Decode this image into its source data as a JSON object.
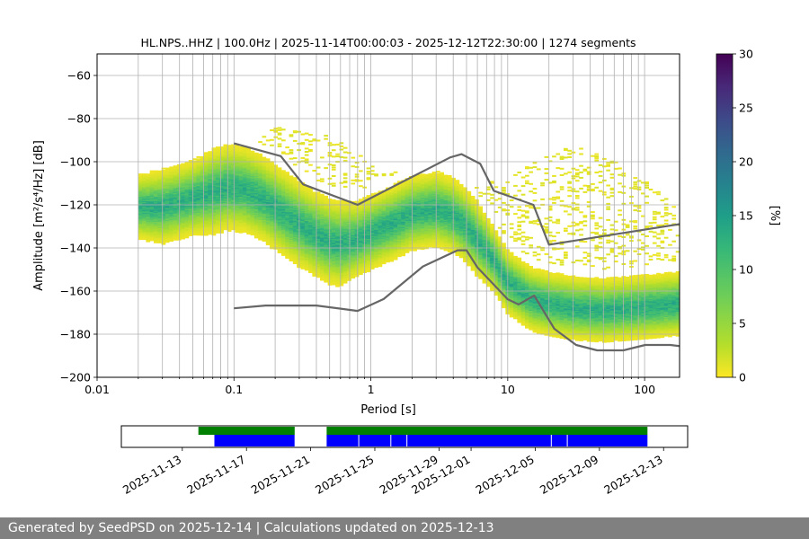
{
  "chart_data": [
    {
      "type": "heatmap",
      "title": "HL.NPS..HHZ | 100.0Hz | 2025-11-14T00:00:03 - 2025-12-12T22:30:00 | 1274 segments",
      "xlabel": "Period [s]",
      "ylabel": "Amplitude [m²/s⁴/Hz] [dB]",
      "x_scale": "log",
      "xlim": [
        0.01,
        180
      ],
      "ylim": [
        -200,
        -50
      ],
      "x_ticks": [
        0.01,
        0.1,
        1,
        10,
        100
      ],
      "x_tick_labels": [
        "0.01",
        "0.1",
        "1",
        "10",
        "100"
      ],
      "y_ticks": [
        -200,
        -180,
        -160,
        -140,
        -120,
        -100,
        -80,
        -60
      ],
      "y_tick_labels": [
        "−200",
        "−180",
        "−160",
        "−140",
        "−120",
        "−100",
        "−80",
        "−60"
      ],
      "grid": true,
      "colorbar": {
        "label": "[%]",
        "range": [
          0,
          30
        ],
        "ticks": [
          0,
          5,
          10,
          15,
          20,
          25,
          30
        ],
        "colormap": "viridis_r"
      },
      "psd_mode": {
        "period": [
          0.02,
          0.03,
          0.05,
          0.07,
          0.09,
          0.12,
          0.16,
          0.22,
          0.3,
          0.4,
          0.5,
          0.6,
          0.8,
          1.0,
          1.5,
          2.0,
          3.0,
          4.0,
          5.0,
          6.0,
          8.0,
          10,
          15,
          20,
          30,
          50,
          80,
          120,
          180
        ],
        "amplitude": [
          -121,
          -121,
          -117,
          -114,
          -112,
          -113,
          -117,
          -123,
          -129,
          -134,
          -137,
          -138,
          -136,
          -133,
          -128,
          -124,
          -122,
          -125,
          -130,
          -136,
          -146,
          -156,
          -164,
          -166,
          -168,
          -169,
          -168,
          -167,
          -166
        ]
      },
      "spread_half_width": [
        6,
        7,
        7,
        8,
        8,
        8,
        8,
        8,
        8,
        8,
        8,
        8,
        7,
        7,
        7,
        7,
        7,
        7,
        7,
        7,
        6,
        6,
        6,
        6,
        6,
        6,
        6,
        6,
        6
      ],
      "sparse_upper_envelope": {
        "period": [
          0.12,
          0.2,
          0.5,
          1.0,
          2.0,
          5.0,
          10,
          20,
          30,
          50,
          100,
          180
        ],
        "amplitude": [
          -93,
          -84,
          -88,
          -100,
          -108,
          -110,
          -108,
          -96,
          -93,
          -97,
          -108,
          -123
        ]
      },
      "nhnm": {
        "name": "NHNM",
        "period": [
          0.1,
          0.22,
          0.32,
          0.8,
          3.8,
          4.6,
          6.3,
          7.9,
          15.4,
          20,
          354.8
        ],
        "amplitude": [
          -91.5,
          -97.4,
          -110.5,
          -120,
          -98,
          -96.5,
          -101,
          -113.5,
          -120,
          -138.5,
          -126
        ]
      },
      "nlnm": {
        "name": "NLNM",
        "period": [
          0.1,
          0.17,
          0.4,
          0.8,
          1.24,
          2.4,
          4.3,
          5.0,
          6.0,
          10,
          12,
          15.6,
          21.9,
          31.6,
          45,
          70,
          101,
          154,
          328
        ],
        "amplitude": [
          -168,
          -166.7,
          -166.7,
          -169.2,
          -163.7,
          -148.6,
          -141.1,
          -141.1,
          -149,
          -163.8,
          -166.2,
          -162.1,
          -177.5,
          -185,
          -187.5,
          -187.5,
          -185,
          -185,
          -187.5
        ]
      }
    },
    {
      "type": "timeline",
      "x_tick_labels": [
        "2025-11-13",
        "2025-11-17",
        "2025-11-21",
        "2025-11-25",
        "2025-11-29",
        "2025-12-01",
        "2025-12-05",
        "2025-12-09",
        "2025-12-13"
      ],
      "series": [
        {
          "color": "#008000",
          "segments": [
            [
              "2025-11-14",
              "2025-11-20"
            ],
            [
              "2025-11-22",
              "2025-12-12"
            ]
          ]
        },
        {
          "color": "#0000ff",
          "segments": [
            [
              "2025-11-15",
              "2025-11-20"
            ],
            [
              "2025-11-22",
              "2025-12-12"
            ]
          ]
        }
      ],
      "gap_markers": [
        "2025-11-24",
        "2025-11-26",
        "2025-11-27",
        "2025-12-06",
        "2025-12-07"
      ]
    }
  ],
  "footer": {
    "text": "Generated by SeedPSD on 2025-12-14 | Calculations updated on 2025-12-13"
  }
}
